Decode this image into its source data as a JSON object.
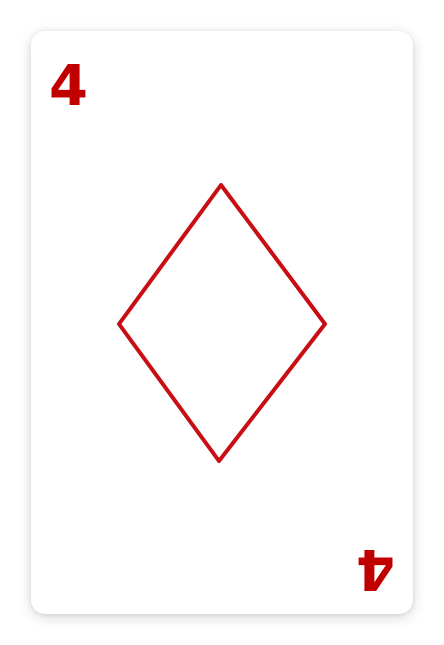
{
  "card": {
    "rank": "4",
    "suit_icon": "diamond-icon",
    "suit_color": "#c00000",
    "background": "#ffffff"
  }
}
